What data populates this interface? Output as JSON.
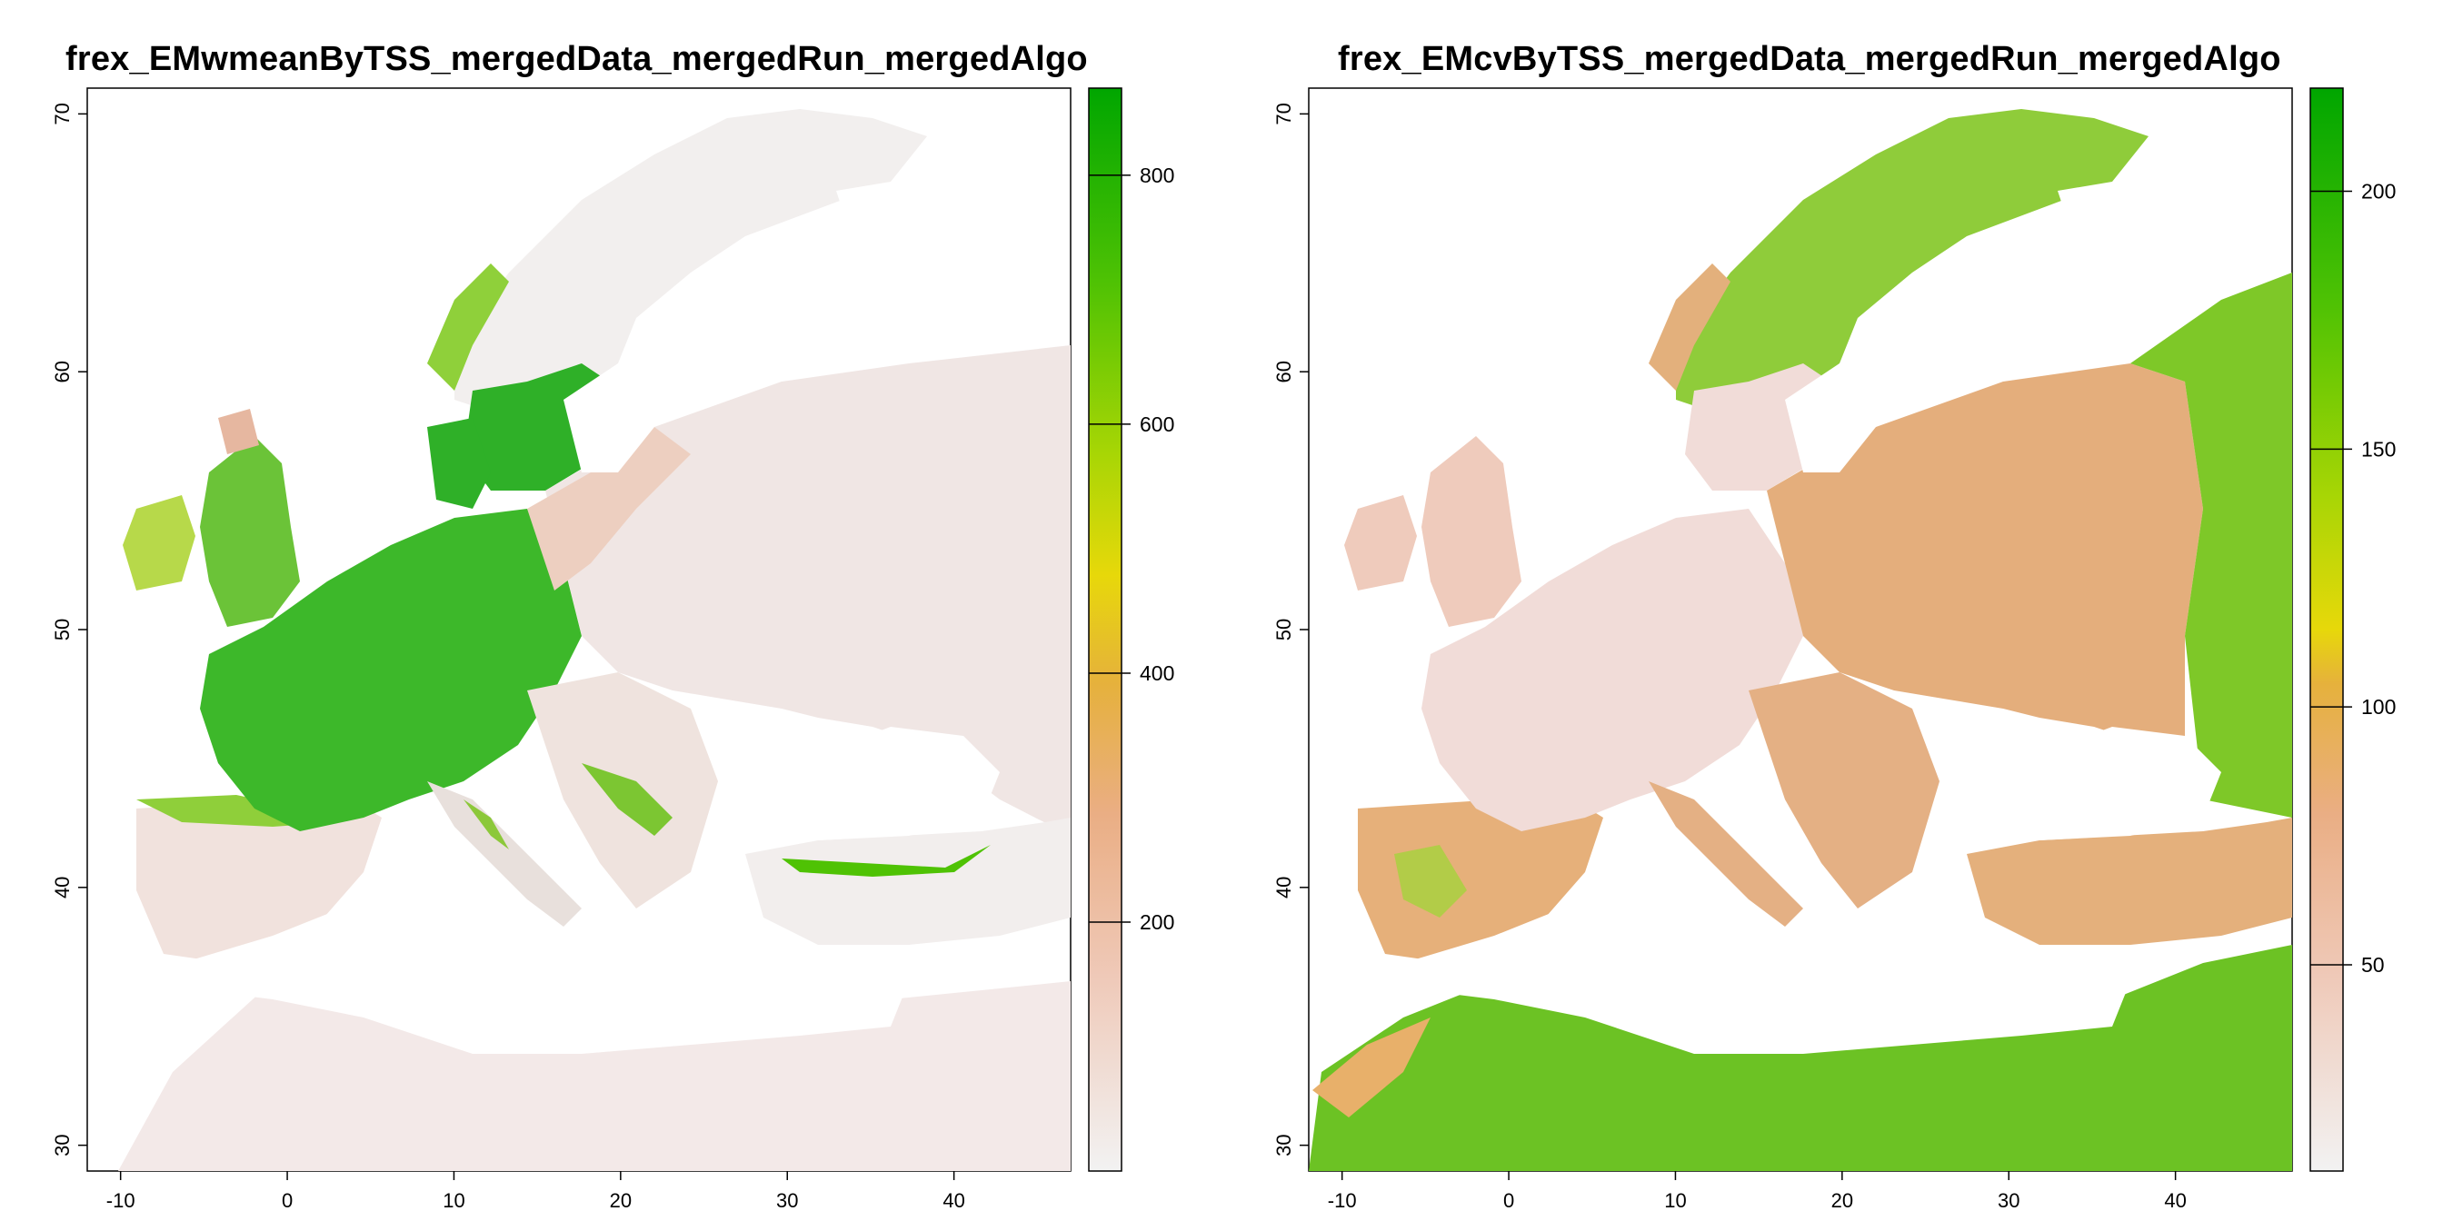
{
  "panels": [
    {
      "title": "frex_EMwmeanByTSS_mergedData_mergedRun_mergedAlgo",
      "x_ticks": [
        "-10",
        "0",
        "10",
        "20",
        "30",
        "40"
      ],
      "y_ticks": [
        "30",
        "40",
        "50",
        "60",
        "70"
      ],
      "legend_ticks": [
        "200",
        "400",
        "600",
        "800"
      ],
      "legend_range": [
        0,
        870
      ],
      "legend_colors": [
        "#f2f2f2",
        "#efc9b8",
        "#eaae84",
        "#e6b13c",
        "#e7d80a",
        "#a9d605",
        "#4fc204",
        "#00a600"
      ]
    },
    {
      "title": "frex_EMcvByTSS_mergedData_mergedRun_mergedAlgo",
      "x_ticks": [
        "-10",
        "0",
        "10",
        "20",
        "30",
        "40"
      ],
      "y_ticks": [
        "30",
        "40",
        "50",
        "60",
        "70"
      ],
      "legend_ticks": [
        "50",
        "100",
        "150",
        "200"
      ],
      "legend_range": [
        10,
        220
      ],
      "legend_colors": [
        "#f2f2f2",
        "#efc9b8",
        "#eaae84",
        "#e6b13c",
        "#e7d80a",
        "#a9d605",
        "#4fc204",
        "#00a600"
      ]
    }
  ],
  "axis_extent": {
    "lon": [
      -12,
      47
    ],
    "lat": [
      29,
      71
    ]
  }
}
